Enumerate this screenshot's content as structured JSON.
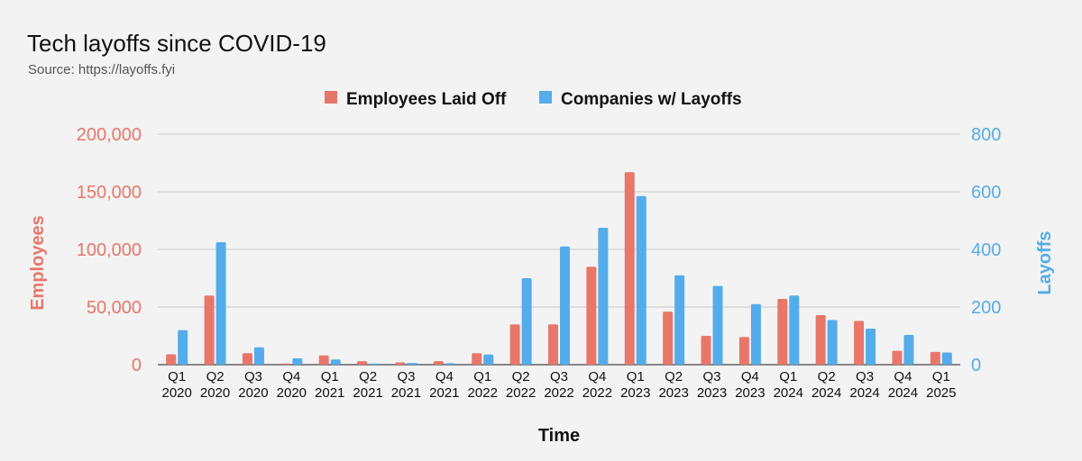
{
  "chart_data": {
    "type": "bar",
    "title": "Tech layoffs since COVID-19",
    "subtitle": "Source: https://layoffs.fyi",
    "xlabel": "Time",
    "ylabel_left": "Employees",
    "ylabel_right": "Layoffs",
    "categories": [
      [
        "Q1",
        "2020"
      ],
      [
        "Q2",
        "2020"
      ],
      [
        "Q3",
        "2020"
      ],
      [
        "Q4",
        "2020"
      ],
      [
        "Q1",
        "2021"
      ],
      [
        "Q2",
        "2021"
      ],
      [
        "Q3",
        "2021"
      ],
      [
        "Q4",
        "2021"
      ],
      [
        "Q1",
        "2022"
      ],
      [
        "Q2",
        "2022"
      ],
      [
        "Q3",
        "2022"
      ],
      [
        "Q4",
        "2022"
      ],
      [
        "Q1",
        "2023"
      ],
      [
        "Q2",
        "2023"
      ],
      [
        "Q3",
        "2023"
      ],
      [
        "Q4",
        "2023"
      ],
      [
        "Q1",
        "2024"
      ],
      [
        "Q2",
        "2024"
      ],
      [
        "Q3",
        "2024"
      ],
      [
        "Q4",
        "2024"
      ],
      [
        "Q1",
        "2025"
      ]
    ],
    "series": [
      {
        "name": "Employees Laid Off",
        "axis": "left",
        "color": "#e8776a",
        "values": [
          9000,
          60000,
          10000,
          1000,
          8000,
          3000,
          2000,
          3000,
          10000,
          35000,
          35000,
          85000,
          167000,
          46000,
          25000,
          24000,
          57000,
          43000,
          38000,
          12000,
          11000
        ]
      },
      {
        "name": "Companies w/ Layoffs",
        "axis": "right",
        "color": "#55acea",
        "values": [
          120,
          425,
          60,
          22,
          18,
          4,
          6,
          5,
          35,
          300,
          410,
          475,
          585,
          310,
          273,
          210,
          240,
          155,
          125,
          103,
          42
        ]
      }
    ],
    "ylim_left": [
      0,
      200000
    ],
    "ylim_right": [
      0,
      800
    ],
    "yticks_left": [
      "0",
      "50,000",
      "100,000",
      "150,000",
      "200,000"
    ],
    "yticks_right": [
      "0",
      "200",
      "400",
      "600",
      "800"
    ],
    "grid": true,
    "legend_position": "top-center"
  }
}
